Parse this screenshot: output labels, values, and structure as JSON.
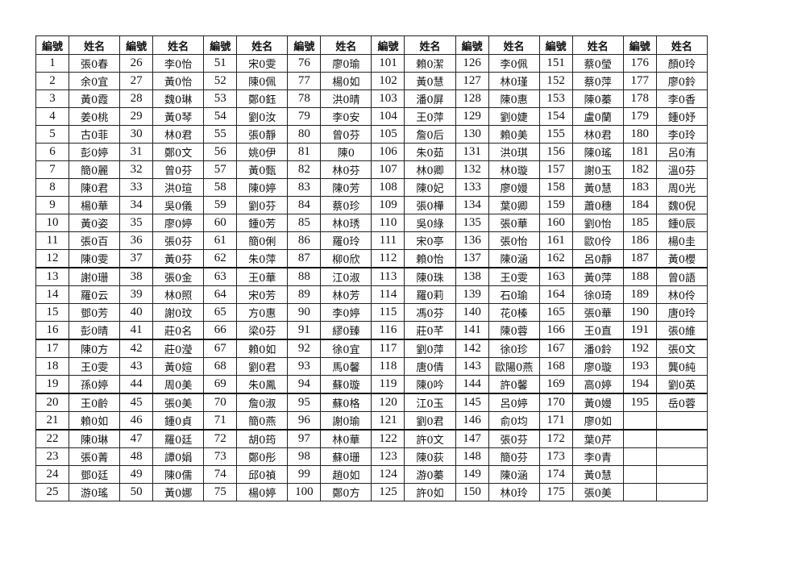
{
  "headers": {
    "number": "編號",
    "name": "姓名"
  },
  "columns": [
    [
      [
        "1",
        "張0春"
      ],
      [
        "2",
        "余0宜"
      ],
      [
        "3",
        "黃0霞"
      ],
      [
        "4",
        "姜0桃"
      ],
      [
        "5",
        "古0菲"
      ],
      [
        "6",
        "彭0婷"
      ],
      [
        "7",
        "簡0麗"
      ],
      [
        "8",
        "陳0君"
      ],
      [
        "9",
        "楊0華"
      ],
      [
        "10",
        "黃0姿"
      ],
      [
        "11",
        "張0百"
      ],
      [
        "12",
        "陳0雯"
      ],
      [
        "13",
        "謝0珊"
      ],
      [
        "14",
        "羅0云"
      ],
      [
        "15",
        "鄧0芳"
      ],
      [
        "16",
        "彭0晴"
      ],
      [
        "17",
        "陳0方"
      ],
      [
        "18",
        "王0雯"
      ],
      [
        "19",
        "孫0婷"
      ],
      [
        "20",
        "王0齡"
      ],
      [
        "21",
        "賴0如"
      ],
      [
        "22",
        "陳0琳"
      ],
      [
        "23",
        "張0菁"
      ],
      [
        "24",
        "鄧0廷"
      ],
      [
        "25",
        "游0瑤"
      ]
    ],
    [
      [
        "26",
        "李0怡"
      ],
      [
        "27",
        "黃0怡"
      ],
      [
        "28",
        "魏0琳"
      ],
      [
        "29",
        "黃0琴"
      ],
      [
        "30",
        "林0君"
      ],
      [
        "31",
        "鄭0文"
      ],
      [
        "32",
        "曾0芬"
      ],
      [
        "33",
        "洪0瑄"
      ],
      [
        "34",
        "吳0儀"
      ],
      [
        "35",
        "廖0婷"
      ],
      [
        "36",
        "張0芬"
      ],
      [
        "37",
        "黃0芬"
      ],
      [
        "38",
        "張0金"
      ],
      [
        "39",
        "林0照"
      ],
      [
        "40",
        "謝0玟"
      ],
      [
        "41",
        "莊0名"
      ],
      [
        "42",
        "莊0瀅"
      ],
      [
        "43",
        "黃0媗"
      ],
      [
        "44",
        "周0美"
      ],
      [
        "45",
        "張0美"
      ],
      [
        "46",
        "鍾0貞"
      ],
      [
        "47",
        "羅0廷"
      ],
      [
        "48",
        "譚0娟"
      ],
      [
        "49",
        "陳0儒"
      ],
      [
        "50",
        "黃0娜"
      ]
    ],
    [
      [
        "51",
        "宋0雯"
      ],
      [
        "52",
        "陳0佩"
      ],
      [
        "53",
        "鄭0鈺"
      ],
      [
        "54",
        "劉0汝"
      ],
      [
        "55",
        "張0靜"
      ],
      [
        "56",
        "姚0伊"
      ],
      [
        "57",
        "黃0甄"
      ],
      [
        "58",
        "陳0婷"
      ],
      [
        "59",
        "劉0芬"
      ],
      [
        "60",
        "鍾0芳"
      ],
      [
        "61",
        "簡0俐"
      ],
      [
        "62",
        "朱0萍"
      ],
      [
        "63",
        "王0華"
      ],
      [
        "64",
        "宋0芳"
      ],
      [
        "65",
        "方0惠"
      ],
      [
        "66",
        "梁0芬"
      ],
      [
        "67",
        "賴0如"
      ],
      [
        "68",
        "劉0君"
      ],
      [
        "69",
        "朱0鳳"
      ],
      [
        "70",
        "詹0淑"
      ],
      [
        "71",
        "簡0燕"
      ],
      [
        "72",
        "胡0筠"
      ],
      [
        "73",
        "鄭0彤"
      ],
      [
        "74",
        "邱0禎"
      ],
      [
        "75",
        "楊0婷"
      ]
    ],
    [
      [
        "76",
        "廖0瑜"
      ],
      [
        "77",
        "楊0如"
      ],
      [
        "78",
        "洪0晴"
      ],
      [
        "79",
        "李0安"
      ],
      [
        "80",
        "曾0芬"
      ],
      [
        "81",
        "陳0"
      ],
      [
        "82",
        "林0芬"
      ],
      [
        "83",
        "陳0芳"
      ],
      [
        "84",
        "蔡0珍"
      ],
      [
        "85",
        "林0琇"
      ],
      [
        "86",
        "羅0玲"
      ],
      [
        "87",
        "柳0欣"
      ],
      [
        "88",
        "江0淑"
      ],
      [
        "89",
        "林0芳"
      ],
      [
        "90",
        "李0婷"
      ],
      [
        "91",
        "繆0臻"
      ],
      [
        "92",
        "徐0宜"
      ],
      [
        "93",
        "馬0馨"
      ],
      [
        "94",
        "蘇0璇"
      ],
      [
        "95",
        "蘇0格"
      ],
      [
        "96",
        "謝0瑜"
      ],
      [
        "97",
        "林0華"
      ],
      [
        "98",
        "蘇0珊"
      ],
      [
        "99",
        "趙0如"
      ],
      [
        "100",
        "鄭0方"
      ]
    ],
    [
      [
        "101",
        "賴0潔"
      ],
      [
        "102",
        "黃0慧"
      ],
      [
        "103",
        "潘0屏"
      ],
      [
        "104",
        "王0萍"
      ],
      [
        "105",
        "詹0后"
      ],
      [
        "106",
        "朱0茹"
      ],
      [
        "107",
        "林0卿"
      ],
      [
        "108",
        "陳0妃"
      ],
      [
        "109",
        "張0樺"
      ],
      [
        "110",
        "吳0綠"
      ],
      [
        "111",
        "宋0亭"
      ],
      [
        "112",
        "賴0怡"
      ],
      [
        "113",
        "陳0珠"
      ],
      [
        "114",
        "羅0莉"
      ],
      [
        "115",
        "馮0芬"
      ],
      [
        "116",
        "莊0芊"
      ],
      [
        "117",
        "劉0萍"
      ],
      [
        "118",
        "唐0倩"
      ],
      [
        "119",
        "陳0吟"
      ],
      [
        "120",
        "江0玉"
      ],
      [
        "121",
        "劉0君"
      ],
      [
        "122",
        "許0文"
      ],
      [
        "123",
        "陳0荻"
      ],
      [
        "124",
        "游0蓁"
      ],
      [
        "125",
        "許0如"
      ]
    ],
    [
      [
        "126",
        "李0佩"
      ],
      [
        "127",
        "林0瑾"
      ],
      [
        "128",
        "陳0惠"
      ],
      [
        "129",
        "劉0婕"
      ],
      [
        "130",
        "賴0美"
      ],
      [
        "131",
        "洪0琪"
      ],
      [
        "132",
        "林0璇"
      ],
      [
        "133",
        "廖0嫚"
      ],
      [
        "134",
        "葉0卿"
      ],
      [
        "135",
        "張0華"
      ],
      [
        "136",
        "張0怡"
      ],
      [
        "137",
        "陳0涵"
      ],
      [
        "138",
        "王0雯"
      ],
      [
        "139",
        "石0瑜"
      ],
      [
        "140",
        "花0榛"
      ],
      [
        "141",
        "陳0蓉"
      ],
      [
        "142",
        "徐0珍"
      ],
      [
        "143",
        "歐陽0燕"
      ],
      [
        "144",
        "許0馨"
      ],
      [
        "145",
        "呂0婷"
      ],
      [
        "146",
        "俞0均"
      ],
      [
        "147",
        "張0芬"
      ],
      [
        "148",
        "簡0芬"
      ],
      [
        "149",
        "陳0涵"
      ],
      [
        "150",
        "林0玲"
      ]
    ],
    [
      [
        "151",
        "蔡0瑩"
      ],
      [
        "152",
        "蔡0萍"
      ],
      [
        "153",
        "陳0蓁"
      ],
      [
        "154",
        "盧0蘭"
      ],
      [
        "155",
        "林0君"
      ],
      [
        "156",
        "陳0瑤"
      ],
      [
        "157",
        "謝0玉"
      ],
      [
        "158",
        "黃0慧"
      ],
      [
        "159",
        "蕭0穗"
      ],
      [
        "160",
        "劉0怡"
      ],
      [
        "161",
        "歐0伶"
      ],
      [
        "162",
        "呂0靜"
      ],
      [
        "163",
        "黃0萍"
      ],
      [
        "164",
        "徐0琦"
      ],
      [
        "165",
        "張0華"
      ],
      [
        "166",
        "王0直"
      ],
      [
        "167",
        "潘0鈴"
      ],
      [
        "168",
        "廖0璇"
      ],
      [
        "169",
        "高0婷"
      ],
      [
        "170",
        "黃0嫚"
      ],
      [
        "171",
        "廖0如"
      ],
      [
        "172",
        "葉0芹"
      ],
      [
        "173",
        "李0青"
      ],
      [
        "174",
        "黃0慧"
      ],
      [
        "175",
        "張0美"
      ]
    ],
    [
      [
        "176",
        "顏0玲"
      ],
      [
        "177",
        "廖0鈴"
      ],
      [
        "178",
        "李0香"
      ],
      [
        "179",
        "鍾0妤"
      ],
      [
        "180",
        "李0玲"
      ],
      [
        "181",
        "呂0洧"
      ],
      [
        "182",
        "溫0芬"
      ],
      [
        "183",
        "周0光"
      ],
      [
        "184",
        "魏0倪"
      ],
      [
        "185",
        "鍾0辰"
      ],
      [
        "186",
        "楊0圭"
      ],
      [
        "187",
        "黃0櫻"
      ],
      [
        "188",
        "曾0語"
      ],
      [
        "189",
        "林0伶"
      ],
      [
        "190",
        "唐0玲"
      ],
      [
        "191",
        "張0維"
      ],
      [
        "192",
        "張0文"
      ],
      [
        "193",
        "龔0純"
      ],
      [
        "194",
        "劉0英"
      ],
      [
        "195",
        "岳0蓉"
      ]
    ]
  ]
}
